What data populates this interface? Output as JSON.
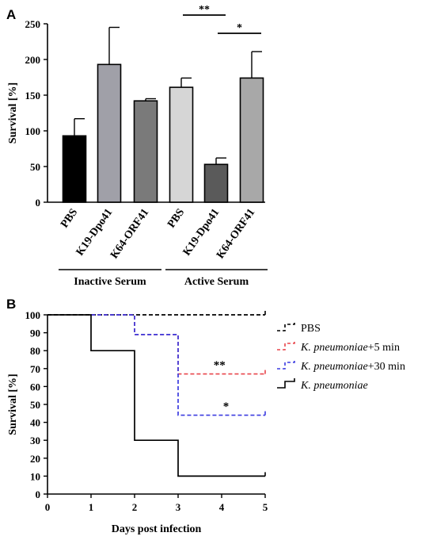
{
  "chart_data": [
    {
      "panel": "A",
      "type": "bar",
      "ylabel": "Survival [%]",
      "ylim": [
        0,
        250
      ],
      "yticks": [
        0,
        50,
        100,
        150,
        200,
        250
      ],
      "categories": [
        "PBS",
        "K19-Dpo41",
        "K64-ORF41",
        "PBS",
        "K19-Dpo41",
        "K64-ORF41"
      ],
      "values": [
        93,
        193,
        142,
        161,
        53,
        174
      ],
      "errors": [
        24,
        52,
        3,
        13,
        9,
        37
      ],
      "colors": [
        "#000000",
        "#a0a0a8",
        "#7a7a7a",
        "#d6d6d6",
        "#5a5a5a",
        "#a8a8a8"
      ],
      "groups": [
        {
          "label": "Inactive Serum",
          "indices": [
            0,
            1,
            2
          ]
        },
        {
          "label": "Active Serum",
          "indices": [
            3,
            4,
            5
          ]
        }
      ],
      "significance": [
        {
          "from": 3,
          "to": 4,
          "label": "**"
        },
        {
          "from": 4,
          "to": 5,
          "label": "*"
        }
      ]
    },
    {
      "panel": "B",
      "type": "line",
      "xlabel": "Days post infection",
      "ylabel": "Survival [%]",
      "xlim": [
        0,
        5
      ],
      "ylim": [
        0,
        100
      ],
      "xticks": [
        0,
        1,
        2,
        3,
        4,
        5
      ],
      "yticks": [
        0,
        10,
        20,
        30,
        40,
        50,
        60,
        70,
        80,
        90,
        100
      ],
      "series": [
        {
          "name": "PBS",
          "italic_part": "",
          "plain_part": "PBS",
          "color": "#000000",
          "dash": "dashed",
          "steps": [
            [
              0,
              100
            ],
            [
              5,
              100
            ]
          ]
        },
        {
          "name": "K. pneumoniae+5 min",
          "italic_part": "K. pneumoniae",
          "plain_part": "+5 min",
          "color": "#e8454b",
          "dash": "dashed",
          "steps": [
            [
              1,
              100
            ],
            [
              2,
              89
            ],
            [
              3,
              67
            ],
            [
              5,
              67
            ]
          ]
        },
        {
          "name": "K. pneumoniae+30 min",
          "italic_part": "K. pneumoniae",
          "plain_part": "+30 min",
          "color": "#3b3be0",
          "dash": "dashed",
          "steps": [
            [
              1,
              100
            ],
            [
              2,
              89
            ],
            [
              3,
              44
            ],
            [
              5,
              44
            ]
          ]
        },
        {
          "name": "K. pneumoniae",
          "italic_part": "K. pneumoniae",
          "plain_part": "",
          "color": "#000000",
          "dash": "solid",
          "steps": [
            [
              0,
              100
            ],
            [
              1,
              80
            ],
            [
              2,
              30
            ],
            [
              3,
              10
            ],
            [
              5,
              10
            ]
          ]
        }
      ],
      "annotations": [
        {
          "text": "**",
          "x": 3.95,
          "y": 70
        },
        {
          "text": "*",
          "x": 4.1,
          "y": 47
        }
      ]
    }
  ]
}
